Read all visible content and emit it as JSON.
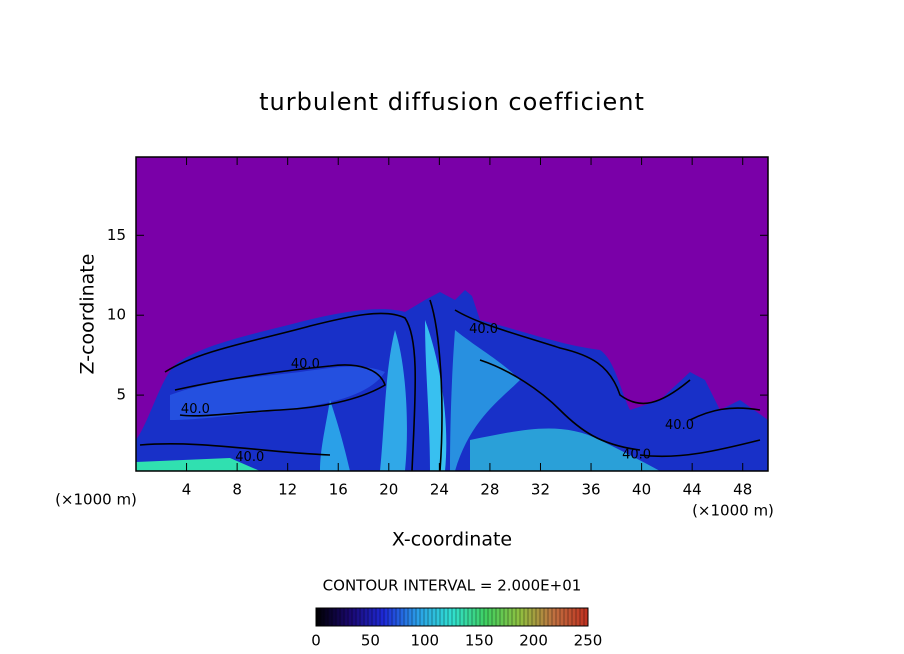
{
  "chart_data": {
    "type": "contour",
    "title": "turbulent diffusion coefficient",
    "x_label": "X-coordinate",
    "y_label": "Z-coordinate",
    "x_unit": "(×1000 m)",
    "y_unit": "(×1000 m)",
    "xlim": [
      0,
      50
    ],
    "ylim": [
      0.25,
      19.9
    ],
    "xticks": [
      4,
      8,
      12,
      16,
      20,
      24,
      28,
      32,
      36,
      40,
      44,
      48
    ],
    "yticks": [
      5,
      10,
      15
    ],
    "contour_interval_text": "CONTOUR INTERVAL = 2.000E+01",
    "contour_labels": [
      {
        "value": 40,
        "label": "40.0",
        "x": 27.5,
        "y": 9.1
      },
      {
        "value": 40,
        "label": "40.0",
        "x": 13.4,
        "y": 6.9
      },
      {
        "value": 40,
        "label": "40.0",
        "x": 4.7,
        "y": 4.1
      },
      {
        "value": 40,
        "label": "40.0",
        "x": 9.0,
        "y": 1.1
      },
      {
        "value": 40,
        "label": "40.0",
        "x": 39.6,
        "y": 1.25
      },
      {
        "value": 40,
        "label": "40.0",
        "x": 43.0,
        "y": 3.1
      }
    ],
    "colorbar_lim": [
      0,
      250
    ],
    "colorbar_ticks": [
      0,
      50,
      100,
      150,
      200,
      250
    ],
    "colormap": [
      "#000000",
      "#1a0870",
      "#1e2ad8",
      "#2aa0e8",
      "#30e0d0",
      "#40d060",
      "#90c040",
      "#c07040",
      "#c03020"
    ],
    "background_color": "#7a00a8"
  }
}
